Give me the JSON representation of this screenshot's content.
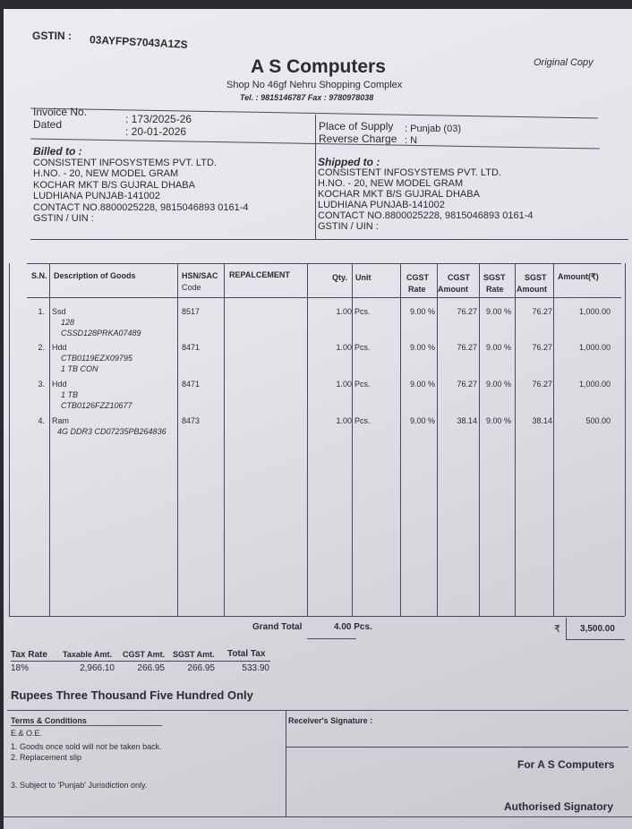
{
  "header": {
    "gstin_label": "GSTIN :",
    "gstin": "03AYFPS7043A1ZS",
    "company": "A S Computers",
    "address": "Shop No 46gf Nehru Shopping Complex",
    "contact": "Tel. : 9815146787  Fax : 9780978038",
    "copy": "Original Copy"
  },
  "invoice": {
    "no_label": "Invoice No.",
    "no": ": 173/2025-26",
    "date_label": "Dated",
    "date": ": 20-01-2026",
    "place_label": "Place of Supply",
    "place": ": Punjab (03)",
    "rc_label": "Reverse Charge",
    "rc": ": N"
  },
  "billed": {
    "title": "Billed to   :",
    "lines": [
      "CONSISTENT INFOSYSTEMS PVT. LTD.",
      "H.NO. - 20, NEW MODEL GRAM",
      "KOCHAR MKT B/S GUJRAL DHABA",
      "LUDHIANA PUNJAB-141002",
      "CONTACT NO.8800025228, 9815046893 0161-4"
    ],
    "gstin": "GSTIN / UIN        :"
  },
  "shipped": {
    "title": "Shipped to :",
    "lines": [
      "CONSISTENT INFOSYSTEMS PVT. LTD.",
      "H.NO. - 20, NEW MODEL GRAM",
      "KOCHAR MKT B/S GUJRAL DHABA",
      "LUDHIANA PUNJAB-141002",
      "CONTACT NO.8800025228, 9815046893 0161-4"
    ],
    "gstin": "GSTIN / UIN        :"
  },
  "table": {
    "headers": {
      "sn": "S.N.",
      "desc": "Description of Goods",
      "hsn1": "HSN/SAC",
      "hsn2": "Code",
      "rep": "REPALCEMENT",
      "qty": "Qty.",
      "unit": "Unit",
      "cr1": "CGST",
      "cr2": "Rate",
      "ca1": "CGST",
      "ca2": "Amount",
      "sr1": "SGST",
      "sr2": "Rate",
      "sa1": "SGST",
      "sa2": "Amount",
      "amt": "Amount(₹)"
    },
    "rows": [
      {
        "sn": "1.",
        "desc": "Ssd",
        "sub": [
          "128",
          "CSSD128PRKA07489"
        ],
        "hsn": "8517",
        "qty": "1.00",
        "unit": "Pcs.",
        "cgst_rate": "9.00 %",
        "cgst_amt": "76.27",
        "sgst_rate": "9.00 %",
        "sgst_amt": "76.27",
        "amount": "1,000.00"
      },
      {
        "sn": "2.",
        "desc": "Hdd",
        "sub": [
          "CTB0119EZX09795",
          "1 TB CON"
        ],
        "hsn": "8471",
        "qty": "1.00",
        "unit": "Pcs.",
        "cgst_rate": "9.00 %",
        "cgst_amt": "76.27",
        "sgst_rate": "9.00 %",
        "sgst_amt": "76.27",
        "amount": "1,000.00"
      },
      {
        "sn": "3.",
        "desc": "Hdd",
        "sub": [
          "1 TB",
          "CTB0126FZZ10677"
        ],
        "hsn": "8471",
        "qty": "1.00",
        "unit": "Pcs.",
        "cgst_rate": "9.00 %",
        "cgst_amt": "76.27",
        "sgst_rate": "9.00 %",
        "sgst_amt": "76.27",
        "amount": "1,000.00"
      },
      {
        "sn": "4.",
        "desc": "Ram",
        "sub": [
          "4G DDR3 CD07235PB264836"
        ],
        "hsn": "8473",
        "qty": "1.00",
        "unit": "Pcs.",
        "cgst_rate": "9.00 %",
        "cgst_amt": "38.14",
        "sgst_rate": "9.00 %",
        "sgst_amt": "38.14",
        "amount": "500.00"
      }
    ],
    "grand_label": "Grand Total",
    "grand_qty": "4.00 Pcs.",
    "currency": "₹",
    "grand_amount": "3,500.00"
  },
  "tax": {
    "headers": [
      "Tax Rate",
      "Taxable Amt.",
      "CGST Amt.",
      "SGST Amt.",
      "Total Tax"
    ],
    "values": [
      "18%",
      "2,966.10",
      "266.95",
      "266.95",
      "533.90"
    ]
  },
  "words": "Rupees Three Thousand Five Hundred Only",
  "terms": {
    "title": "Terms & Conditions",
    "lines": [
      "E.& O.E.",
      "1. Goods once sold will not be taken back.",
      "2. Replacement slip",
      "3. Subject to 'Punjab' Jurisdiction only."
    ]
  },
  "sign": {
    "receiver": "Receiver's Signature    :",
    "for": "For A S Computers",
    "auth": "Authorised Signatory"
  }
}
